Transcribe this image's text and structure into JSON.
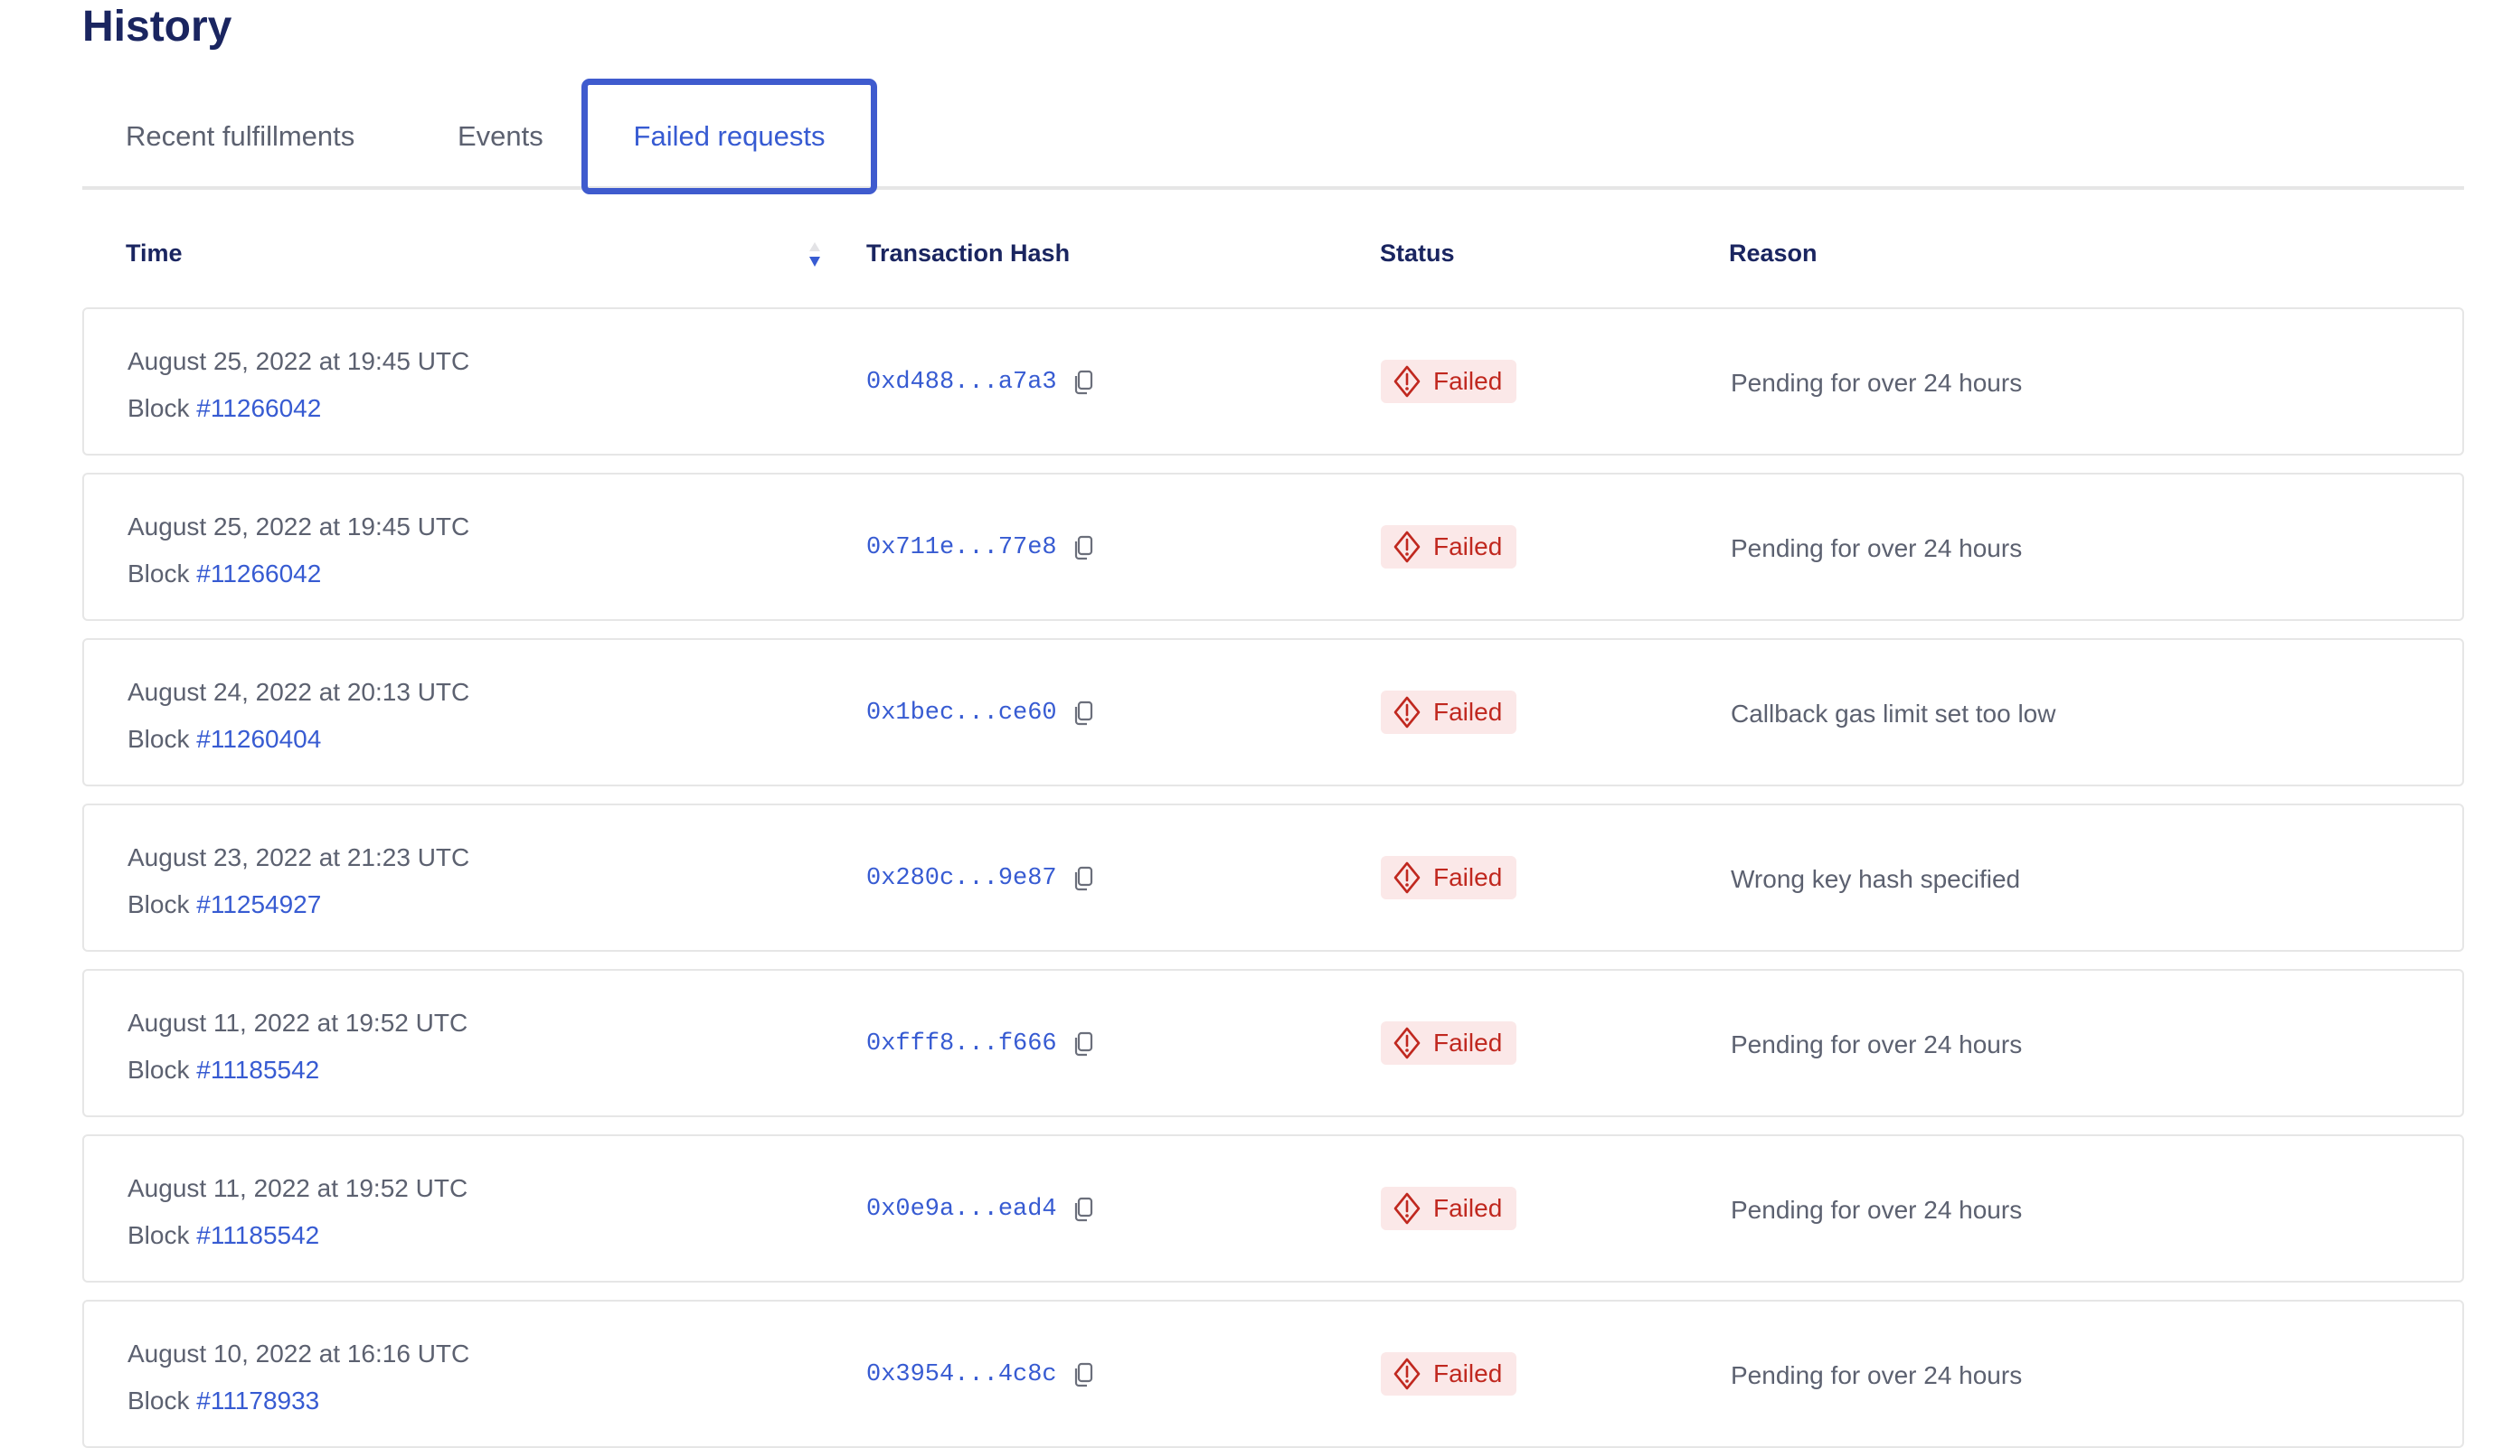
{
  "page": {
    "title": "History"
  },
  "tabs": [
    {
      "label": "Recent fulfillments",
      "active": false
    },
    {
      "label": "Events",
      "active": false
    },
    {
      "label": "Failed requests",
      "active": true
    }
  ],
  "table": {
    "headers": {
      "time": "Time",
      "hash": "Transaction Hash",
      "status": "Status",
      "reason": "Reason"
    },
    "sort": {
      "column": "Time",
      "direction": "descending"
    },
    "rows": [
      {
        "date": "August 25, 2022 at 19:45 UTC",
        "block_label": "Block",
        "block": "#11266042",
        "hash": "0xd488...a7a3",
        "status": "Failed",
        "reason": "Pending for over 24 hours"
      },
      {
        "date": "August 25, 2022 at 19:45 UTC",
        "block_label": "Block",
        "block": "#11266042",
        "hash": "0x711e...77e8",
        "status": "Failed",
        "reason": "Pending for over 24 hours"
      },
      {
        "date": "August 24, 2022 at 20:13 UTC",
        "block_label": "Block",
        "block": "#11260404",
        "hash": "0x1bec...ce60",
        "status": "Failed",
        "reason": "Callback gas limit set too low"
      },
      {
        "date": "August 23, 2022 at 21:23 UTC",
        "block_label": "Block",
        "block": "#11254927",
        "hash": "0x280c...9e87",
        "status": "Failed",
        "reason": "Wrong key hash specified"
      },
      {
        "date": "August 11, 2022 at 19:52 UTC",
        "block_label": "Block",
        "block": "#11185542",
        "hash": "0xfff8...f666",
        "status": "Failed",
        "reason": "Pending for over 24 hours"
      },
      {
        "date": "August 11, 2022 at 19:52 UTC",
        "block_label": "Block",
        "block": "#11185542",
        "hash": "0x0e9a...ead4",
        "status": "Failed",
        "reason": "Pending for over 24 hours"
      },
      {
        "date": "August 10, 2022 at 16:16 UTC",
        "block_label": "Block",
        "block": "#11178933",
        "hash": "0x3954...4c8c",
        "status": "Failed",
        "reason": "Pending for over 24 hours"
      }
    ]
  },
  "colors": {
    "accent": "#375bd2",
    "title": "#1a2560",
    "failed": "#c0281f",
    "failed_bg": "#fbe8e8"
  },
  "icons": {
    "sort": "sort-desc-icon",
    "copy": "copy-icon",
    "status": "warning-diamond-icon"
  }
}
